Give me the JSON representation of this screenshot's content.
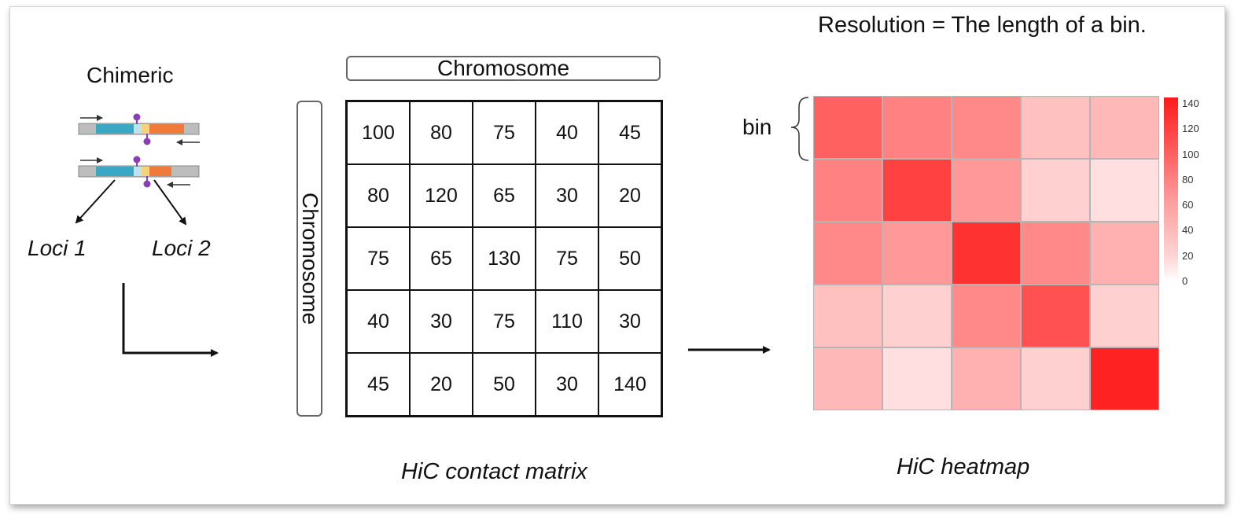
{
  "left_panel": {
    "chimeric_label": "Chimeric",
    "loci_1": "Loci 1",
    "loci_2": "Loci 2"
  },
  "matrix": {
    "col_header": "Chromosome",
    "row_header": "Chromosome",
    "values": [
      [
        100,
        80,
        75,
        40,
        45
      ],
      [
        80,
        120,
        65,
        30,
        20
      ],
      [
        75,
        65,
        130,
        75,
        50
      ],
      [
        40,
        30,
        75,
        110,
        30
      ],
      [
        45,
        20,
        50,
        30,
        140
      ]
    ],
    "caption": "HiC contact matrix"
  },
  "heatmap": {
    "resolution_note": "Resolution = The length of a bin.",
    "bin_label": "bin",
    "caption": "HiC heatmap",
    "colorbar_ticks": [
      140,
      120,
      100,
      80,
      60,
      40,
      20,
      0
    ],
    "colorbar_max": 145,
    "colors": {
      "low": "#ffffff",
      "high": "#ff1a1a"
    }
  },
  "icons": {
    "dna_fragment": "dna-fragment-icon",
    "flow_arrow": "right-arrow-icon"
  },
  "colors": {
    "fragment_teal": "#3aa7c4",
    "fragment_orange": "#f07a3a",
    "fragment_gray": "#bdbdbd",
    "ligation_purple": "#8a3fb5"
  }
}
